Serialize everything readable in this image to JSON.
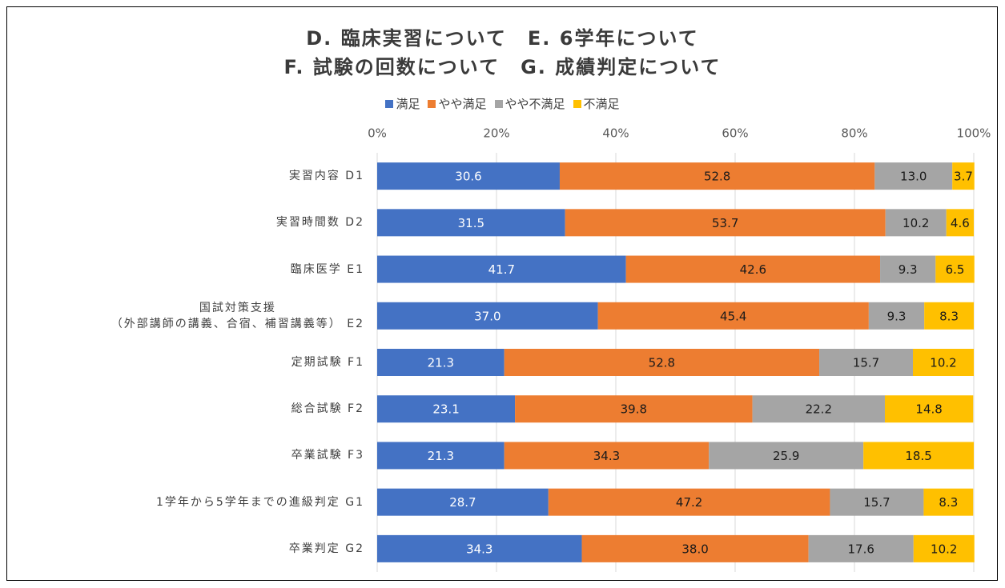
{
  "chart_data": {
    "type": "stacked_barh",
    "title": [
      "D. 臨床実習について　E. 6学年について",
      "F. 試験の回数について　G. 成績判定について"
    ],
    "categories": [
      "実習内容 D1",
      "実習時間数 D2",
      "臨床医学 E1",
      "国試対策支援\n（外部講師の講義、合宿、補習講義等） E2",
      "定期試験 F1",
      "総合試験 F2",
      "卒業試験 F3",
      "1学年から5学年までの進級判定 G1",
      "卒業判定 G2"
    ],
    "series": [
      {
        "name": "満足",
        "color": "#4472c4",
        "values": [
          30.6,
          31.5,
          41.7,
          37.0,
          21.3,
          23.1,
          21.3,
          28.7,
          34.3
        ],
        "value_labels": [
          "30.6",
          "31.5",
          "41.7",
          "37.0",
          "21.3",
          "23.1",
          "21.3",
          "28.7",
          "34.3"
        ]
      },
      {
        "name": "やや満足",
        "color": "#ed7d31",
        "values": [
          52.8,
          53.7,
          42.6,
          45.4,
          52.8,
          39.8,
          34.3,
          47.2,
          38.0
        ],
        "value_labels": [
          "52.8",
          "53.7",
          "42.6",
          "45.4",
          "52.8",
          "39.8",
          "34.3",
          "47.2",
          "38.0"
        ]
      },
      {
        "name": "やや不満足",
        "color": "#a5a5a5",
        "values": [
          13.0,
          10.2,
          9.3,
          9.3,
          15.7,
          22.2,
          25.9,
          15.7,
          17.6
        ],
        "value_labels": [
          "13.0",
          "10.2",
          "9.3",
          "9.3",
          "15.7",
          "22.2",
          "25.9",
          "15.7",
          "17.6"
        ]
      },
      {
        "name": "不満足",
        "color": "#ffc000",
        "values": [
          3.7,
          4.6,
          6.5,
          8.3,
          10.2,
          14.8,
          18.5,
          8.3,
          10.2
        ],
        "value_labels": [
          "3.7",
          "4.6",
          "6.5",
          "8.3",
          "10.2",
          "14.8",
          "18.5",
          "8.3",
          "10.2"
        ]
      }
    ],
    "xlim": [
      0,
      100
    ],
    "xticks": [
      {
        "value": 0,
        "label": "0%"
      },
      {
        "value": 20,
        "label": "20%"
      },
      {
        "value": 40,
        "label": "40%"
      },
      {
        "value": 60,
        "label": "60%"
      },
      {
        "value": 80,
        "label": "80%"
      },
      {
        "value": 100,
        "label": "100%"
      }
    ],
    "grid": true,
    "legend": "top"
  }
}
